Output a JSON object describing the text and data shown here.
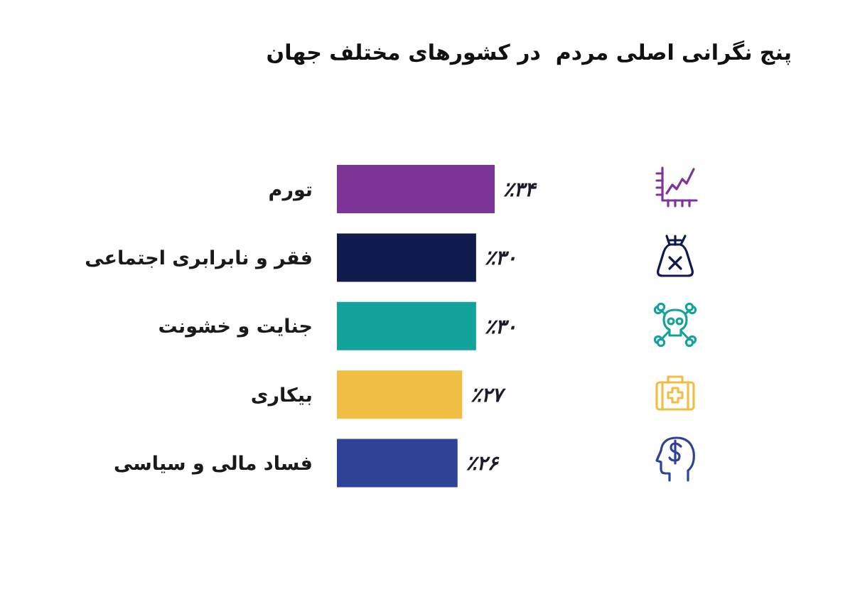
{
  "chart_data": {
    "type": "bar",
    "orientation": "horizontal",
    "title": "پنج نگرانی اصلی مردم  در کشورهای مختلف جهان",
    "categories": [
      "تورم",
      "فقر و نابرابری اجتماعی",
      "جنایت و خشونت",
      "بیکاری",
      "فساد مالی و سیاسی"
    ],
    "values": [
      34,
      30,
      30,
      27,
      26
    ],
    "value_labels": [
      "٪۳۴",
      "٪۳۰",
      "٪۳۰",
      "٪۲۷",
      "٪۲۶"
    ],
    "colors": [
      "#7e3598",
      "#0e1b4c",
      "#14a39a",
      "#f0be45",
      "#2e4398"
    ],
    "tick_labels": "y"
  }
}
